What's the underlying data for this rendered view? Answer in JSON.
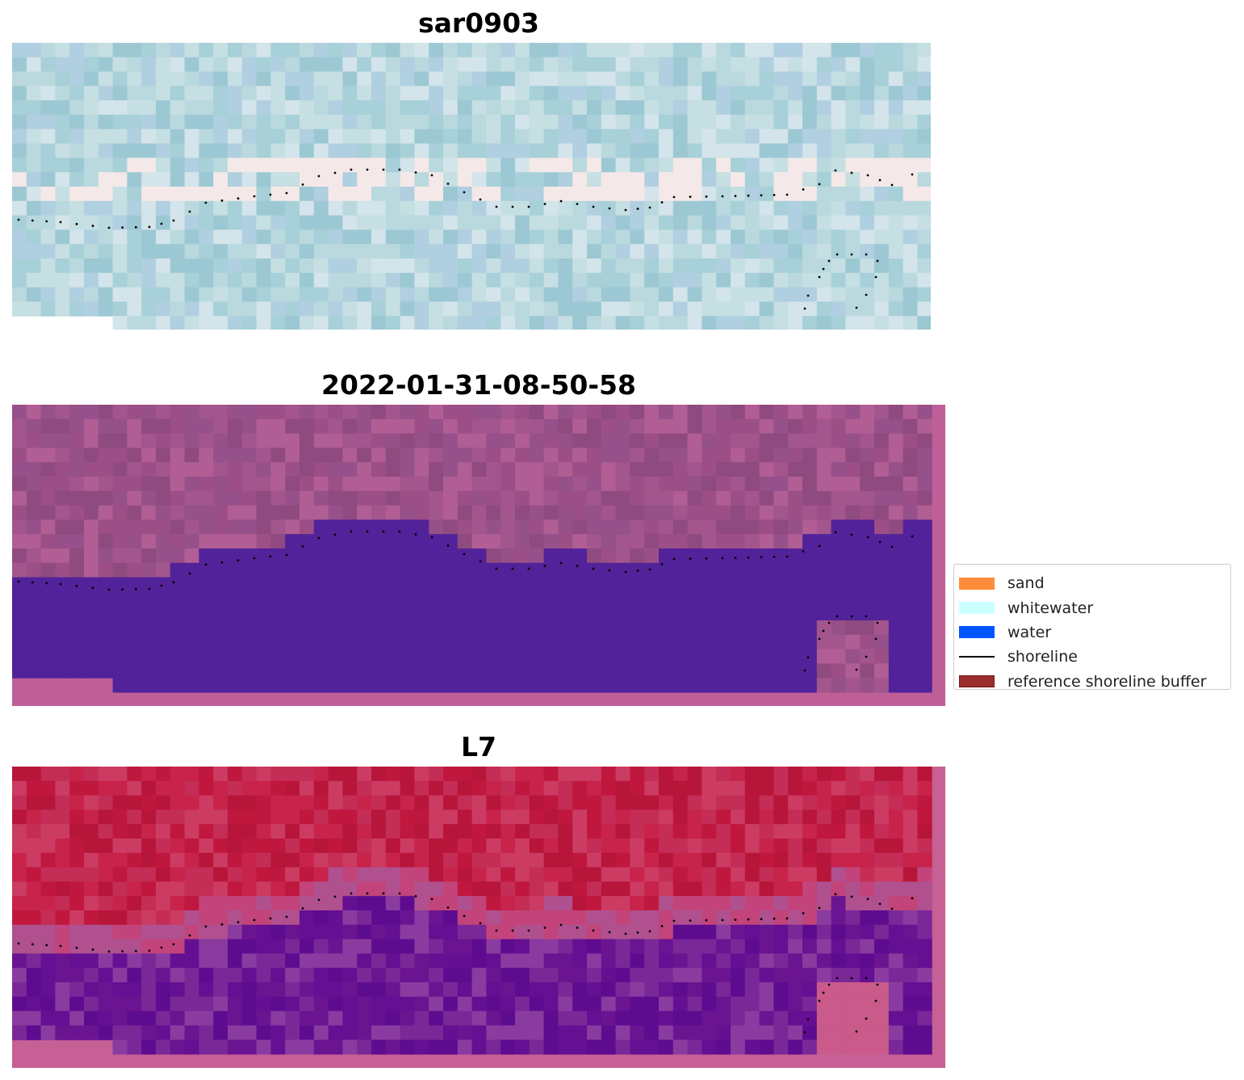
{
  "panels": [
    {
      "title": "sar0903",
      "palette": [
        "#b9d9de",
        "#a7d0d8",
        "#c6dfe3",
        "#9cc8d4",
        "#d3e4ea",
        "#b0cfe0"
      ],
      "accent": "#f4e9e8"
    },
    {
      "title": "2022-01-31-08-50-58",
      "land_colors": [
        "#9c4f87",
        "#a3558d",
        "#8f4a80",
        "#b05e94",
        "#96508a"
      ],
      "water_color": "#52229a",
      "nodata_color": "#bf5f98"
    },
    {
      "title": "L7",
      "land_colors": [
        "#c0173f",
        "#c8234b",
        "#b8153b",
        "#cc3b62",
        "#c42d55"
      ],
      "water_colors": [
        "#6a1491",
        "#5e0c8f",
        "#7a2898",
        "#650f92",
        "#8a3ba0"
      ],
      "nodata_color": "#c76094"
    }
  ],
  "legend": {
    "items": [
      {
        "label": "sand",
        "type": "patch",
        "color": "#ff8c3a",
        "edge": "#ff8c3a"
      },
      {
        "label": "whitewater",
        "type": "patch",
        "color": "#ccffff",
        "edge": "#ccffff"
      },
      {
        "label": "water",
        "type": "patch",
        "color": "#0055ff",
        "edge": "#0055ff"
      },
      {
        "label": "shoreline",
        "type": "line",
        "color": "#000000"
      },
      {
        "label": "reference shoreline buffer",
        "type": "patch",
        "color": "#9b2d2d",
        "edge": "#6b1a1a"
      }
    ]
  },
  "shoreline_color": "#000000"
}
